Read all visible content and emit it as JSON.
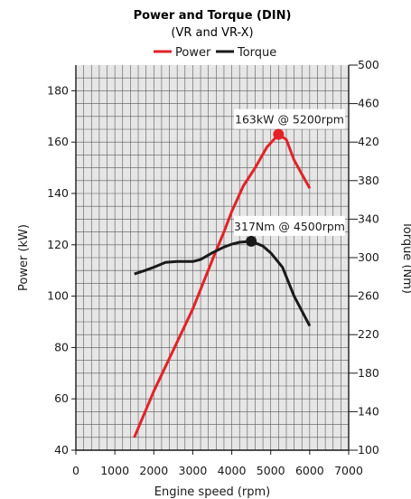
{
  "chart_data": {
    "type": "line",
    "title": "Power and Torque (DIN)",
    "subtitle": "(VR and VR-X)",
    "xlabel": "Engine speed (rpm)",
    "ylabel_left": "Power (kW)",
    "ylabel_right": "Torque (Nm)",
    "xlim": [
      0,
      7000
    ],
    "ylim_left": [
      40,
      190
    ],
    "ylim_right": [
      100,
      500
    ],
    "x_ticks": [
      "0",
      "1000",
      "2000",
      "3000",
      "4000",
      "5000",
      "6000",
      "7000"
    ],
    "y_ticks_left": [
      "40",
      "60",
      "80",
      "100",
      "120",
      "140",
      "160",
      "180"
    ],
    "y_ticks_right": [
      "100",
      "140",
      "180",
      "220",
      "260",
      "300",
      "340",
      "380",
      "420",
      "460",
      "500"
    ],
    "grid": true,
    "legend_position": "top-center",
    "series": [
      {
        "name": "Power",
        "axis": "left",
        "color": "#e32228",
        "x": [
          1500,
          2000,
          2500,
          3000,
          3500,
          3800,
          4000,
          4300,
          4600,
          4900,
          5200,
          5400,
          5600,
          6000
        ],
        "y": [
          45,
          63,
          79,
          95,
          114,
          125,
          133,
          143,
          150,
          158,
          163,
          161,
          153,
          142
        ]
      },
      {
        "name": "Torque",
        "axis": "right",
        "color": "#1a1a1a",
        "x": [
          1500,
          1800,
          2000,
          2300,
          2600,
          3000,
          3200,
          3500,
          3800,
          4000,
          4200,
          4500,
          4800,
          5000,
          5300,
          5600,
          6000
        ],
        "y": [
          283,
          287,
          290,
          295,
          296,
          296,
          298,
          305,
          311,
          314,
          316,
          317,
          312,
          305,
          290,
          260,
          229
        ]
      }
    ],
    "annotations": [
      {
        "text": "163kW @ 5200rpm",
        "series": "Power",
        "x": 5200,
        "y": 163
      },
      {
        "text": "317Nm @ 4500rpm",
        "series": "Torque",
        "x": 4500,
        "y": 317
      }
    ]
  }
}
